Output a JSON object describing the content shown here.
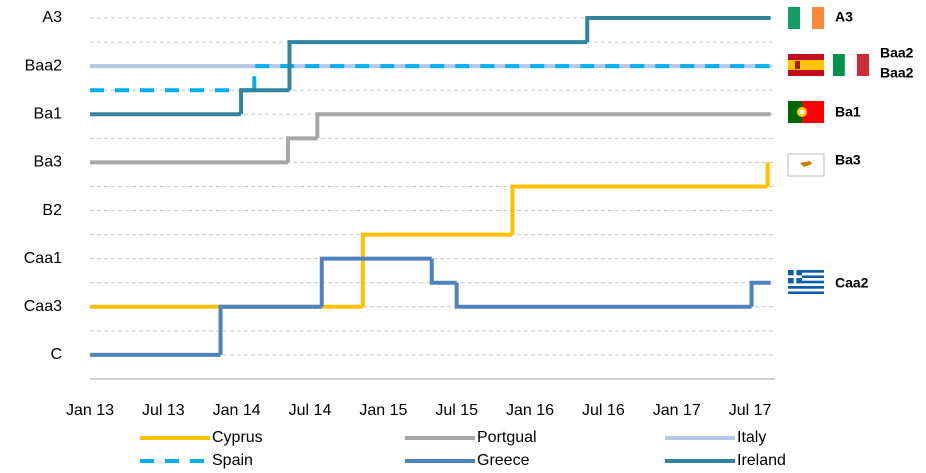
{
  "chart_data": {
    "type": "step",
    "xlim": [
      2013,
      2017.67
    ],
    "xticks": [
      {
        "value": 2013,
        "label": "Jan 13"
      },
      {
        "value": 2013.5,
        "label": "Jul 13"
      },
      {
        "value": 2014,
        "label": "Jan 14"
      },
      {
        "value": 2014.5,
        "label": "Jul 14"
      },
      {
        "value": 2015,
        "label": "Jan 15"
      },
      {
        "value": 2015.5,
        "label": "Jul 15"
      },
      {
        "value": 2016,
        "label": "Jan 16"
      },
      {
        "value": 2016.5,
        "label": "Jul 16"
      },
      {
        "value": 2017,
        "label": "Jan 17"
      },
      {
        "value": 2017.5,
        "label": "Jul 17"
      }
    ],
    "ylim": [
      -1,
      14
    ],
    "yticks": [
      {
        "value": 0,
        "label": "C"
      },
      {
        "value": 2,
        "label": "Caa3"
      },
      {
        "value": 4,
        "label": "Caa1"
      },
      {
        "value": 6,
        "label": "B2"
      },
      {
        "value": 8,
        "label": "Ba3"
      },
      {
        "value": 10,
        "label": "Ba1"
      },
      {
        "value": 12,
        "label": "Baa2"
      },
      {
        "value": 14,
        "label": "A3"
      }
    ],
    "yminor_ticks": [
      1,
      3,
      5,
      7,
      9,
      11,
      13
    ],
    "grid": true,
    "legend": "bottom",
    "series": [
      {
        "name": "Cyprus",
        "color": "#ffc000",
        "x": [
          2013,
          2014.86,
          2015.88,
          2017.62
        ],
        "values": [
          2,
          5,
          7,
          8
        ]
      },
      {
        "name": "Portgual",
        "color": "#a6a6a6",
        "x": [
          2013,
          2014.35,
          2014.55,
          2017.64
        ],
        "values": [
          8,
          9,
          10,
          10
        ]
      },
      {
        "name": "Italy",
        "color": "#b4c7e7",
        "x": [
          2013,
          2017.64
        ],
        "values": [
          12,
          12
        ]
      },
      {
        "name": "Spain",
        "color": "#00b0f0",
        "dashed": true,
        "x": [
          2013,
          2014.12,
          2017.64
        ],
        "values": [
          11,
          12,
          12
        ]
      },
      {
        "name": "Greece",
        "color": "#4f81bd",
        "x": [
          2013,
          2013.89,
          2014.58,
          2015.33,
          2015.5,
          2017.51,
          2017.64
        ],
        "values": [
          0,
          2,
          4,
          3,
          2,
          3,
          3
        ]
      },
      {
        "name": "Ireland",
        "color": "#31859c",
        "x": [
          2013,
          2014.03,
          2014.36,
          2016.39,
          2017.64
        ],
        "values": [
          10,
          11,
          13,
          14,
          14
        ]
      }
    ],
    "annotations": [
      {
        "text": "A3",
        "color": "#31859c"
      },
      {
        "text": "Baa2",
        "color": "#b4c7e7"
      },
      {
        "text": "Baa2",
        "color": "#00b0f0"
      },
      {
        "text": "Ba1",
        "color": "#a6a6a6"
      },
      {
        "text": "Ba3",
        "color": "#ffc000"
      },
      {
        "text": "Caa2",
        "color": "#4f81bd"
      }
    ]
  }
}
